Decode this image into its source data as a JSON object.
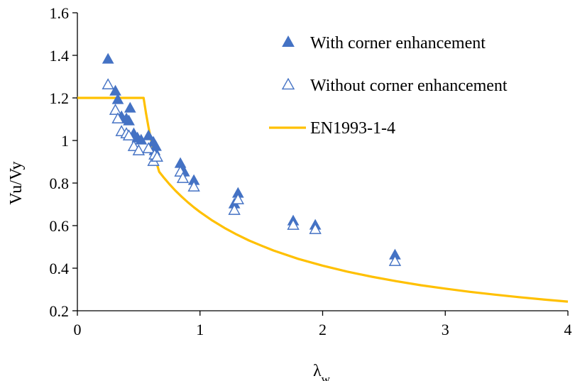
{
  "chart_data": {
    "type": "scatter",
    "xlabel_main": "λ",
    "xlabel_sub": "w",
    "ylabel": "Vu/Vy",
    "xlim": [
      0,
      4
    ],
    "ylim": [
      0.2,
      1.6
    ],
    "x_ticks": [
      0,
      1,
      2,
      3,
      4
    ],
    "y_ticks": [
      0.2,
      0.4,
      0.6,
      0.8,
      1,
      1.2,
      1.4,
      1.6
    ],
    "x_tick_labels": [
      "0",
      "1",
      "2",
      "3",
      "4"
    ],
    "y_tick_labels": [
      "0.2",
      "0.4",
      "0.6",
      "0.8",
      "1",
      "1.2",
      "1.4",
      "1.6"
    ],
    "grid": false,
    "legend_position": "top-right",
    "series": [
      {
        "name": "With corner enhancement",
        "marker": "filled-triangle",
        "color": "#4472C4",
        "points": [
          [
            0.25,
            1.38
          ],
          [
            0.31,
            1.23
          ],
          [
            0.33,
            1.19
          ],
          [
            0.36,
            1.11
          ],
          [
            0.4,
            1.1
          ],
          [
            0.43,
            1.15
          ],
          [
            0.42,
            1.09
          ],
          [
            0.46,
            1.03
          ],
          [
            0.49,
            1.01
          ],
          [
            0.52,
            1.0
          ],
          [
            0.58,
            1.02
          ],
          [
            0.62,
            0.99
          ],
          [
            0.64,
            0.97
          ],
          [
            0.63,
            0.95
          ],
          [
            0.84,
            0.89
          ],
          [
            0.86,
            0.86
          ],
          [
            0.87,
            0.85
          ],
          [
            0.95,
            0.81
          ],
          [
            1.28,
            0.7
          ],
          [
            1.31,
            0.75
          ],
          [
            1.76,
            0.62
          ],
          [
            1.94,
            0.6
          ],
          [
            2.59,
            0.46
          ]
        ]
      },
      {
        "name": "Without corner enhancement",
        "marker": "hollow-triangle",
        "color": "#4472C4",
        "points": [
          [
            0.25,
            1.26
          ],
          [
            0.31,
            1.14
          ],
          [
            0.33,
            1.1
          ],
          [
            0.36,
            1.04
          ],
          [
            0.4,
            1.03
          ],
          [
            0.42,
            1.02
          ],
          [
            0.46,
            0.97
          ],
          [
            0.5,
            0.95
          ],
          [
            0.58,
            0.96
          ],
          [
            0.62,
            0.9
          ],
          [
            0.63,
            0.93
          ],
          [
            0.65,
            0.92
          ],
          [
            0.84,
            0.85
          ],
          [
            0.86,
            0.82
          ],
          [
            0.95,
            0.78
          ],
          [
            1.28,
            0.67
          ],
          [
            1.31,
            0.72
          ],
          [
            1.76,
            0.6
          ],
          [
            1.94,
            0.58
          ],
          [
            2.59,
            0.43
          ]
        ]
      },
      {
        "name": "EN1993-1-4",
        "marker": "line",
        "color": "#FFC000",
        "points": [
          [
            0,
            1.2
          ],
          [
            0.25,
            1.2
          ],
          [
            0.54,
            1.2
          ],
          [
            0.56,
            1.127
          ],
          [
            0.58,
            1.062
          ],
          [
            0.6,
            1.004
          ],
          [
            0.62,
            0.953
          ],
          [
            0.64,
            0.907
          ],
          [
            0.667,
            0.853
          ],
          [
            0.7,
            0.829
          ],
          [
            0.75,
            0.795
          ],
          [
            0.8,
            0.764
          ],
          [
            0.85,
            0.736
          ],
          [
            0.9,
            0.71
          ],
          [
            0.95,
            0.686
          ],
          [
            1.0,
            0.664
          ],
          [
            1.1,
            0.624
          ],
          [
            1.2,
            0.589
          ],
          [
            1.3,
            0.558
          ],
          [
            1.4,
            0.53
          ],
          [
            1.5,
            0.506
          ],
          [
            1.6,
            0.483
          ],
          [
            1.8,
            0.444
          ],
          [
            2.0,
            0.412
          ],
          [
            2.2,
            0.384
          ],
          [
            2.4,
            0.36
          ],
          [
            2.6,
            0.339
          ],
          [
            2.8,
            0.32
          ],
          [
            3.0,
            0.304
          ],
          [
            3.2,
            0.289
          ],
          [
            3.4,
            0.276
          ],
          [
            3.6,
            0.264
          ],
          [
            3.8,
            0.253
          ],
          [
            4.0,
            0.243
          ]
        ]
      }
    ]
  }
}
